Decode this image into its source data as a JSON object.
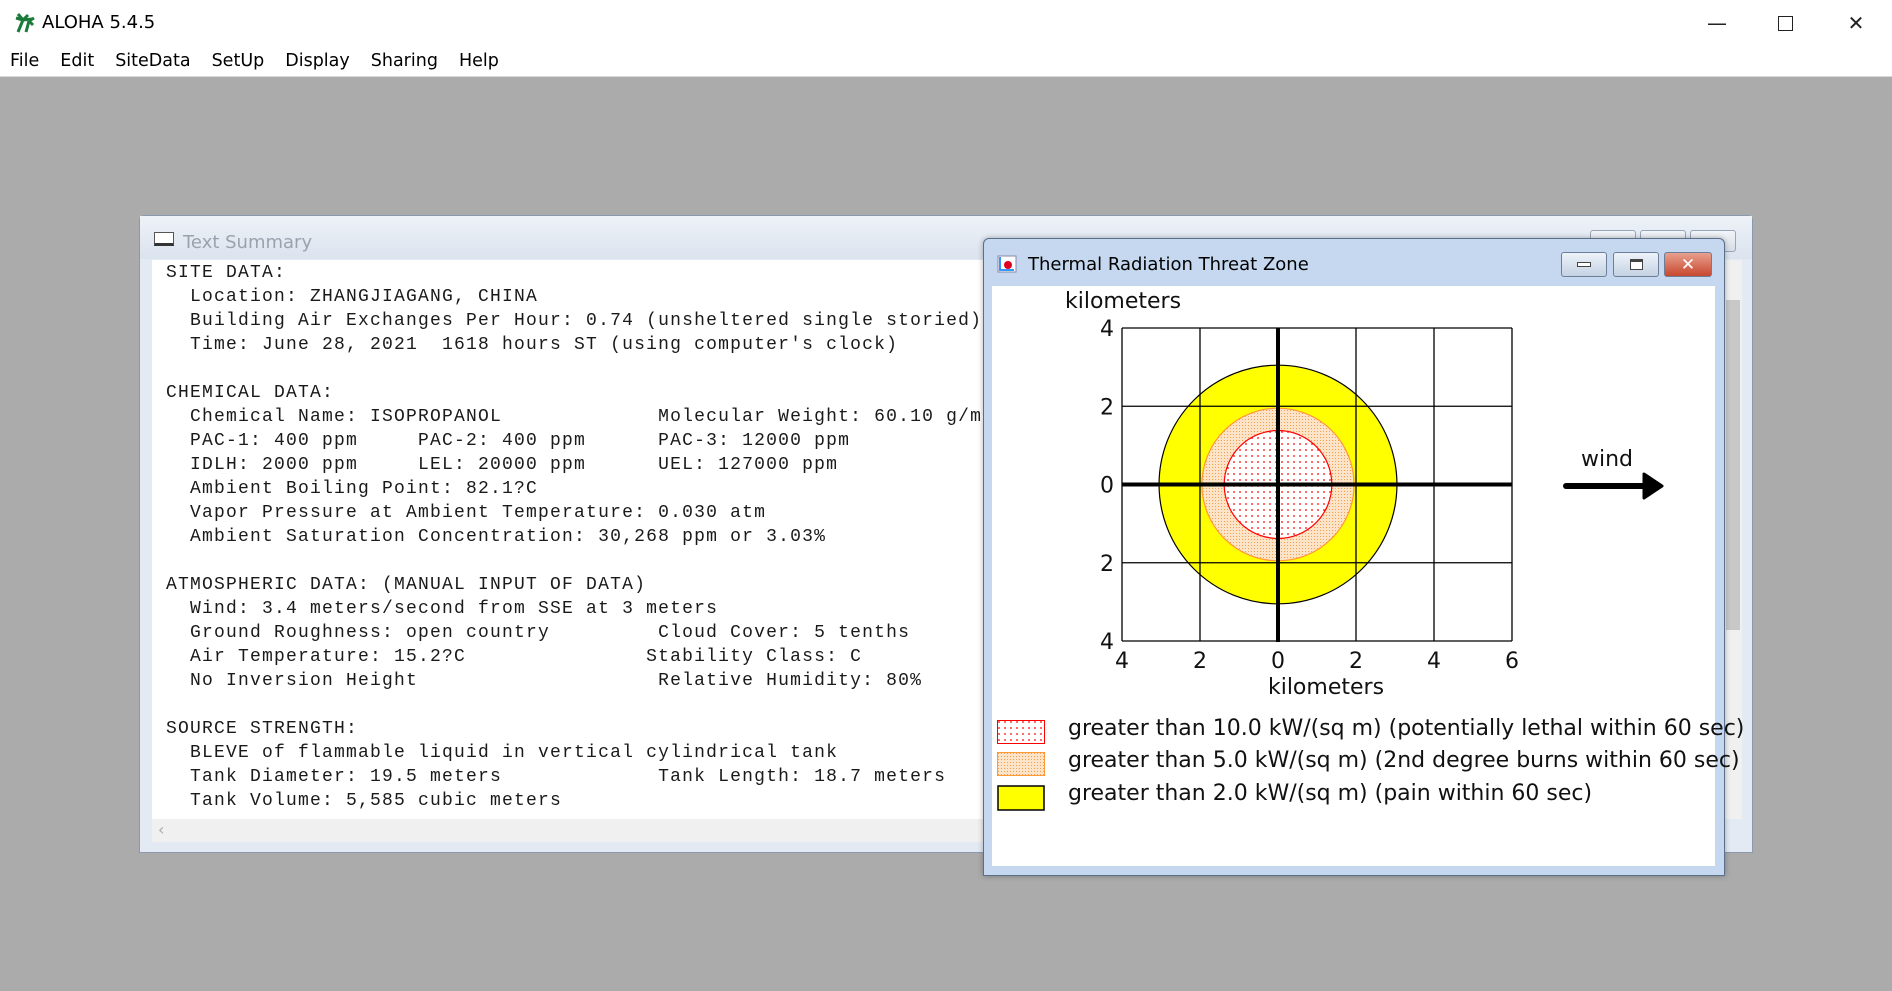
{
  "app": {
    "title": "ALOHA 5.4.5",
    "controls": [
      "minimize",
      "maximize",
      "close"
    ]
  },
  "menu": [
    "File",
    "Edit",
    "SiteData",
    "SetUp",
    "Display",
    "Sharing",
    "Help"
  ],
  "text_summary": {
    "title": "Text Summary",
    "lines": [
      "SITE DATA:",
      "  Location: ZHANGJIAGANG, CHINA",
      "  Building Air Exchanges Per Hour: 0.74 (unsheltered single storied)",
      "  Time: June 28, 2021  1618 hours ST (using computer's clock)",
      "",
      "CHEMICAL DATA:",
      "  Chemical Name: ISOPROPANOL             Molecular Weight: 60.10 g/m",
      "  PAC-1: 400 ppm     PAC-2: 400 ppm      PAC-3: 12000 ppm",
      "  IDLH: 2000 ppm     LEL: 20000 ppm      UEL: 127000 ppm",
      "  Ambient Boiling Point: 82.1?C",
      "  Vapor Pressure at Ambient Temperature: 0.030 atm",
      "  Ambient Saturation Concentration: 30,268 ppm or 3.03%",
      "",
      "ATMOSPHERIC DATA: (MANUAL INPUT OF DATA)",
      "  Wind: 3.4 meters/second from SSE at 3 meters",
      "  Ground Roughness: open country         Cloud Cover: 5 tenths",
      "  Air Temperature: 15.2?C               Stability Class: C",
      "  No Inversion Height                    Relative Humidity: 80%",
      "",
      "SOURCE STRENGTH:",
      "  BLEVE of flammable liquid in vertical cylindrical tank",
      "  Tank Diameter: 19.5 meters             Tank Length: 18.7 meters",
      "  Tank Volume: 5,585 cubic meters"
    ]
  },
  "threat_zone": {
    "title": "Thermal Radiation Threat Zone",
    "wind_label": "wind",
    "wind_direction": "east"
  },
  "chart_data": {
    "type": "area",
    "ylabel": "kilometers",
    "xlabel": "kilometers",
    "xlim": [
      -4,
      6
    ],
    "ylim": [
      -4,
      4
    ],
    "x_ticks": [
      -4,
      -2,
      0,
      2,
      4,
      6
    ],
    "x_tick_labels": [
      "4",
      "2",
      "0",
      "2",
      "4",
      "6"
    ],
    "y_ticks": [
      4,
      2,
      0,
      -2,
      -4
    ],
    "y_tick_labels": [
      "4",
      "2",
      "0",
      "2",
      "4"
    ],
    "grid": true,
    "zones": [
      {
        "name": "greater than 2.0 kW/(sq m) (pain within 60 sec)",
        "radius_km": 3.05,
        "color": "#ffff00",
        "edge": "#000000",
        "pattern": "solid"
      },
      {
        "name": "greater than 5.0 kW/(sq m) (2nd degree burns within 60 sec)",
        "radius_km": 1.95,
        "color": "#fcd9b4",
        "edge": "#ff9933",
        "pattern": "stipple"
      },
      {
        "name": "greater than 10.0 kW/(sq m) (potentially lethal within 60 sec)",
        "radius_km": 1.38,
        "color": "#ffffff",
        "edge": "#ff0000",
        "pattern": "dots"
      }
    ],
    "legend": [
      {
        "label": "greater than 10.0 kW/(sq m) (potentially lethal within 60 sec)",
        "pattern": "dots",
        "color": "#ff0000"
      },
      {
        "label": "greater than 5.0 kW/(sq m) (2nd degree burns within 60 sec)",
        "pattern": "stipple",
        "color": "#ff9933"
      },
      {
        "label": "greater than 2.0 kW/(sq m) (pain within 60 sec)",
        "pattern": "solid",
        "color": "#ffff00"
      }
    ]
  }
}
